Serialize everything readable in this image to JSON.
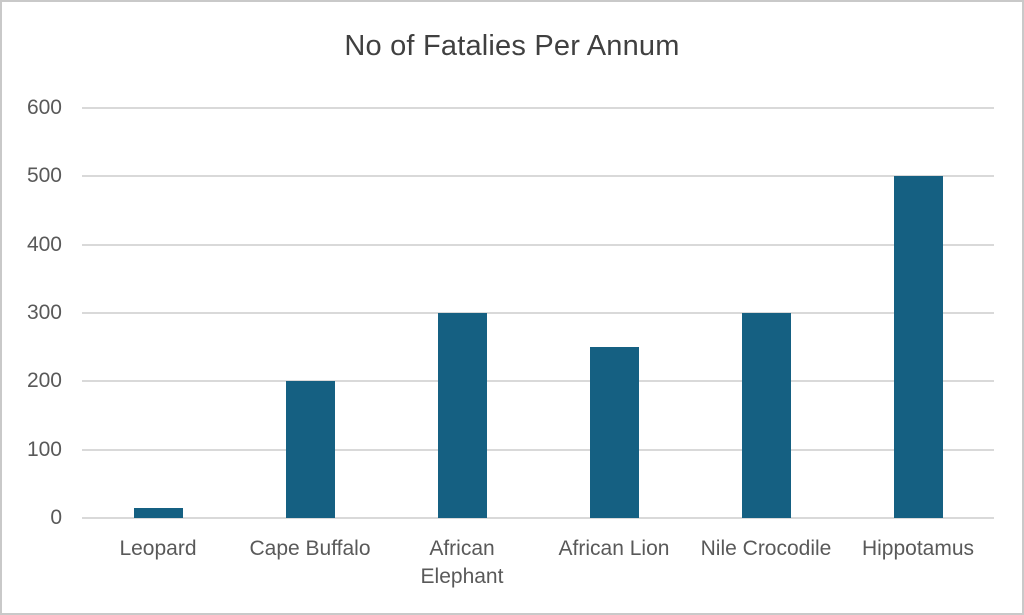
{
  "page": {
    "background": "#ffffff",
    "border_color": "#c9c9c9"
  },
  "chart_data": {
    "type": "bar",
    "title": "No of Fatalies Per Annum",
    "categories": [
      "Leopard",
      "Cape Buffalo",
      "African Elephant",
      "African Lion",
      "Nile Crocodile",
      "Hippotamus"
    ],
    "values": [
      15,
      200,
      300,
      250,
      300,
      500
    ],
    "xlabel": "",
    "ylabel": "",
    "ylim": [
      0,
      600
    ],
    "yticks": [
      0,
      100,
      200,
      300,
      400,
      500,
      600
    ],
    "grid": true,
    "legend": false,
    "bar_color": "#156082",
    "gridline_color": "#d9d9d9",
    "axis_label_color": "#595959",
    "title_color": "#404040"
  }
}
